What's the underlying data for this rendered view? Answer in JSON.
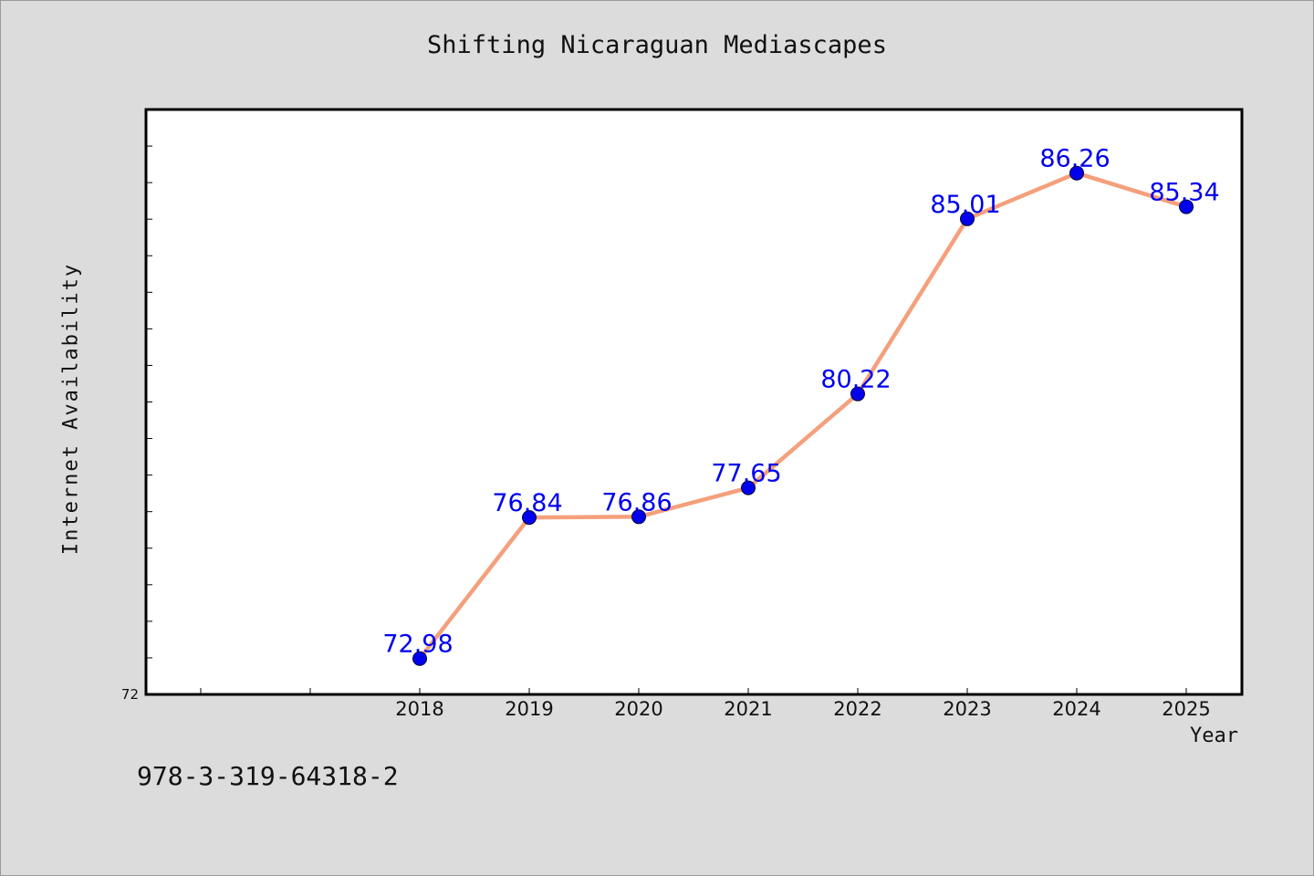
{
  "chart_data": {
    "type": "line",
    "title": "Shifting Nicaraguan Mediascapes",
    "xlabel": "Year",
    "ylabel": "Internet Availability",
    "x": [
      "2018",
      "2019",
      "2020",
      "2021",
      "2022",
      "2023",
      "2024",
      "2025"
    ],
    "values": [
      72.98,
      76.84,
      76.86,
      77.65,
      80.22,
      85.01,
      86.26,
      85.34
    ],
    "data_labels": [
      "72.98",
      "76.84",
      "76.86",
      "77.65",
      "80.22",
      "85.01",
      "86.26",
      "85.34"
    ],
    "y_tick_labels": [
      "72"
    ],
    "ylim": [
      72,
      88
    ],
    "grid": false,
    "legend": "none",
    "line_color": "#f4a07c",
    "marker_color": "#0000ee",
    "label_color": "#0000ee"
  },
  "footer": {
    "identifier": "978-3-319-64318-2"
  }
}
